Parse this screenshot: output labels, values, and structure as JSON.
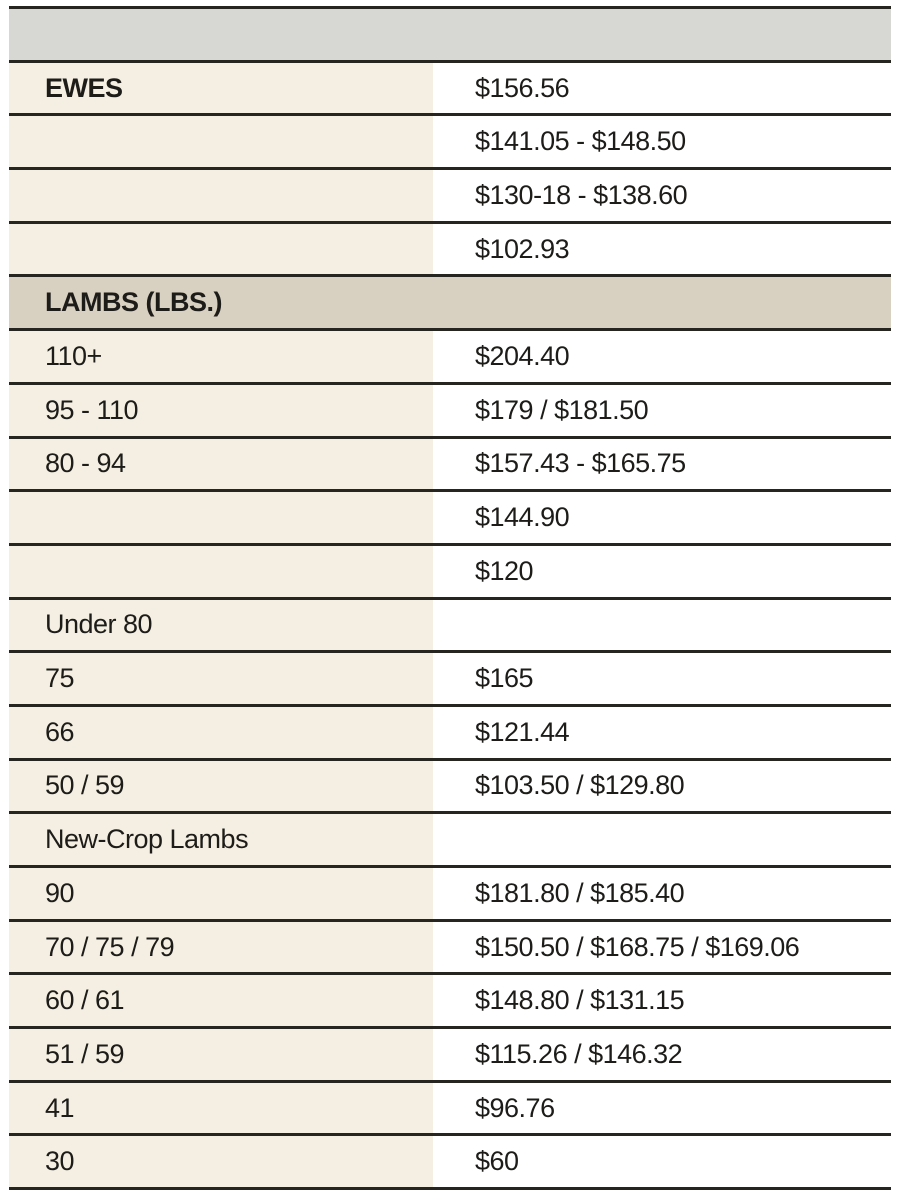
{
  "colors": {
    "top_bar": "#d7d8d3",
    "section_bar": "#d8d0c0",
    "label_cell": "#f4efe2",
    "value_cell": "#ffffff",
    "border": "#26251f",
    "text": "#1d1c19",
    "page_bg": "#ffffff"
  },
  "table": {
    "rows": [
      {
        "kind": "topbar",
        "label": "",
        "value": ""
      },
      {
        "kind": "data",
        "bold": true,
        "label": "EWES",
        "value": "$156.56"
      },
      {
        "kind": "data",
        "label": "",
        "value": "$141.05 - $148.50"
      },
      {
        "kind": "data",
        "label": "",
        "value": "$130-18 - $138.60"
      },
      {
        "kind": "data",
        "label": "",
        "value": "$102.93"
      },
      {
        "kind": "section",
        "label": "LAMBS (LBS.)",
        "value": ""
      },
      {
        "kind": "data",
        "label": "110+",
        "value": "$204.40"
      },
      {
        "kind": "data",
        "label": "95 - 110",
        "value": "$179 / $181.50"
      },
      {
        "kind": "data",
        "label": "80 - 94",
        "value": "$157.43 - $165.75"
      },
      {
        "kind": "data",
        "label": "",
        "value": "$144.90"
      },
      {
        "kind": "data",
        "label": "",
        "value": "$120"
      },
      {
        "kind": "data",
        "label": "Under 80",
        "value": ""
      },
      {
        "kind": "data",
        "label": "75",
        "value": "$165"
      },
      {
        "kind": "data",
        "label": "66",
        "value": "$121.44"
      },
      {
        "kind": "data",
        "label": "50 / 59",
        "value": "$103.50 / $129.80"
      },
      {
        "kind": "data",
        "label": "New-Crop Lambs",
        "value": ""
      },
      {
        "kind": "data",
        "label": "90",
        "value": "$181.80 / $185.40"
      },
      {
        "kind": "data",
        "label": "70 / 75 / 79",
        "value": "$150.50 / $168.75 / $169.06"
      },
      {
        "kind": "data",
        "label": "60 / 61",
        "value": "$148.80 / $131.15"
      },
      {
        "kind": "data",
        "label": "51 / 59",
        "value": "$115.26 / $146.32"
      },
      {
        "kind": "data",
        "label": "41",
        "value": "$96.76"
      },
      {
        "kind": "data",
        "label": "30",
        "value": "$60"
      }
    ]
  },
  "chart_data": {
    "type": "table",
    "columns": [
      "category",
      "price"
    ],
    "sections": [
      {
        "header": "EWES",
        "rows": [
          [
            "EWES",
            "$156.56"
          ],
          [
            "",
            "$141.05 - $148.50"
          ],
          [
            "",
            "$130-18 - $138.60"
          ],
          [
            "",
            "$102.93"
          ]
        ]
      },
      {
        "header": "LAMBS (LBS.)",
        "rows": [
          [
            "110+",
            "$204.40"
          ],
          [
            "95 - 110",
            "$179 / $181.50"
          ],
          [
            "80 - 94",
            "$157.43 - $165.75"
          ],
          [
            "",
            "$144.90"
          ],
          [
            "",
            "$120"
          ],
          [
            "Under 80",
            ""
          ],
          [
            "75",
            "$165"
          ],
          [
            "66",
            "$121.44"
          ],
          [
            "50 / 59",
            "$103.50 / $129.80"
          ],
          [
            "New-Crop Lambs",
            ""
          ],
          [
            "90",
            "$181.80 / $185.40"
          ],
          [
            "70 / 75 / 79",
            "$150.50 / $168.75 / $169.06"
          ],
          [
            "60 / 61",
            "$148.80 / $131.15"
          ],
          [
            "51 / 59",
            "$115.26 / $146.32"
          ],
          [
            "41",
            "$96.76"
          ],
          [
            "30",
            "$60"
          ]
        ]
      }
    ]
  }
}
